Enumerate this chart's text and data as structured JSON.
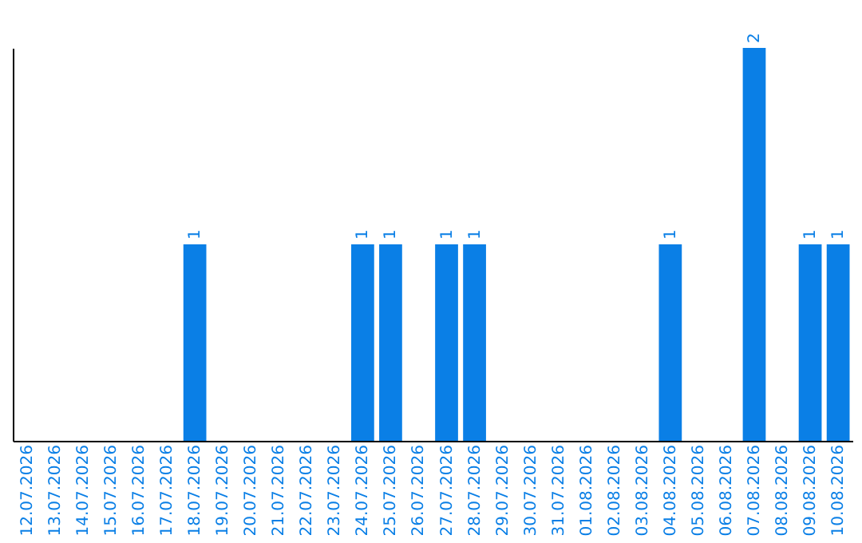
{
  "chart_data": {
    "type": "bar",
    "categories": [
      "12.07.2026",
      "13.07.2026",
      "14.07.2026",
      "15.07.2026",
      "16.07.2026",
      "17.07.2026",
      "18.07.2026",
      "19.07.2026",
      "20.07.2026",
      "21.07.2026",
      "22.07.2026",
      "23.07.2026",
      "24.07.2026",
      "25.07.2026",
      "26.07.2026",
      "27.07.2026",
      "28.07.2026",
      "29.07.2026",
      "30.07.2026",
      "31.07.2026",
      "01.08.2026",
      "02.08.2026",
      "03.08.2026",
      "04.08.2026",
      "05.08.2026",
      "06.08.2026",
      "07.08.2026",
      "08.08.2026",
      "09.08.2026",
      "10.08.2026"
    ],
    "values": [
      0,
      0,
      0,
      0,
      0,
      0,
      1,
      0,
      0,
      0,
      0,
      0,
      1,
      1,
      0,
      1,
      1,
      0,
      0,
      0,
      0,
      0,
      0,
      1,
      0,
      0,
      2,
      0,
      1,
      1
    ],
    "value_labels": [
      null,
      null,
      null,
      null,
      null,
      null,
      "1",
      null,
      null,
      null,
      null,
      null,
      "1",
      "1",
      null,
      "1",
      "1",
      null,
      null,
      null,
      null,
      null,
      null,
      "1",
      null,
      null,
      "2",
      null,
      "1",
      "1"
    ],
    "color": "#0a7fe6",
    "tick_labels": "x",
    "grid": false
  }
}
